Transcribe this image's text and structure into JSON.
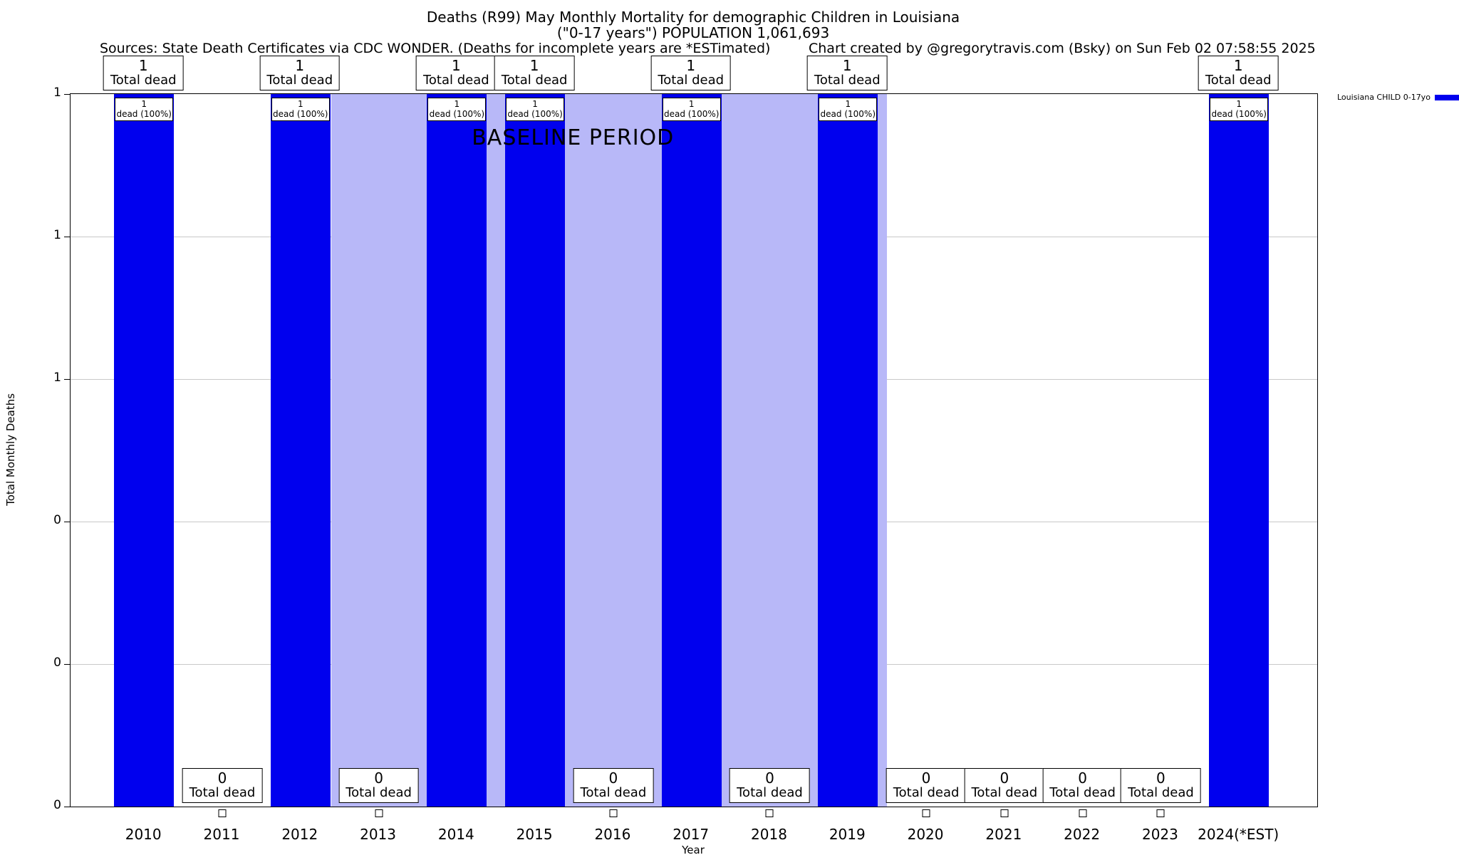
{
  "header": {
    "title": "Deaths (R99) May Monthly Mortality for demographic Children in Louisiana",
    "subtitle": "(\"0-17 years\") POPULATION 1,061,693",
    "sources": "Sources: State Death Certificates via CDC WONDER. (Deaths for incomplete years are *ESTimated)",
    "credit": "Chart created by @gregorytravis.com (Bsky) on Sun Feb 02 07:58:55 2025"
  },
  "legend": {
    "label": "Louisiana CHILD 0-17yo",
    "swatch_color": "#0000ee"
  },
  "axes": {
    "ylabel": "Total Monthly Deaths",
    "xlabel": "Year",
    "ytick_labels": [
      "1",
      "1",
      "1",
      "0",
      "0",
      "0"
    ]
  },
  "chart_data": {
    "type": "bar",
    "title": "Deaths (R99) May Monthly Mortality for demographic Children in Louisiana",
    "subtitle": "(\"0-17 years\") POPULATION 1,061,693",
    "xlabel": "Year",
    "ylabel": "Total Monthly Deaths",
    "ylim": [
      0,
      1
    ],
    "grid": true,
    "legend_position": "top-right",
    "categories": [
      "2010",
      "2011",
      "2012",
      "2013",
      "2014",
      "2015",
      "2016",
      "2017",
      "2018",
      "2019",
      "2020",
      "2021",
      "2022",
      "2023",
      "2024(*EST)"
    ],
    "series": [
      {
        "name": "Louisiana CHILD 0-17yo",
        "color": "#0000ee",
        "values": [
          1,
          0,
          1,
          0,
          1,
          1,
          0,
          1,
          0,
          1,
          0,
          0,
          0,
          0,
          1
        ]
      }
    ],
    "baseline_region": {
      "label": "BASELINE PERIOD",
      "start_fraction": 0.209,
      "end_fraction": 0.655,
      "color": "#b8b8f8"
    },
    "annotations": {
      "one": {
        "value": "1",
        "label": "Total dead"
      },
      "zero": {
        "value": "0",
        "label": "Total dead"
      },
      "inner": {
        "value": "1",
        "label": "dead (100%)"
      }
    }
  }
}
